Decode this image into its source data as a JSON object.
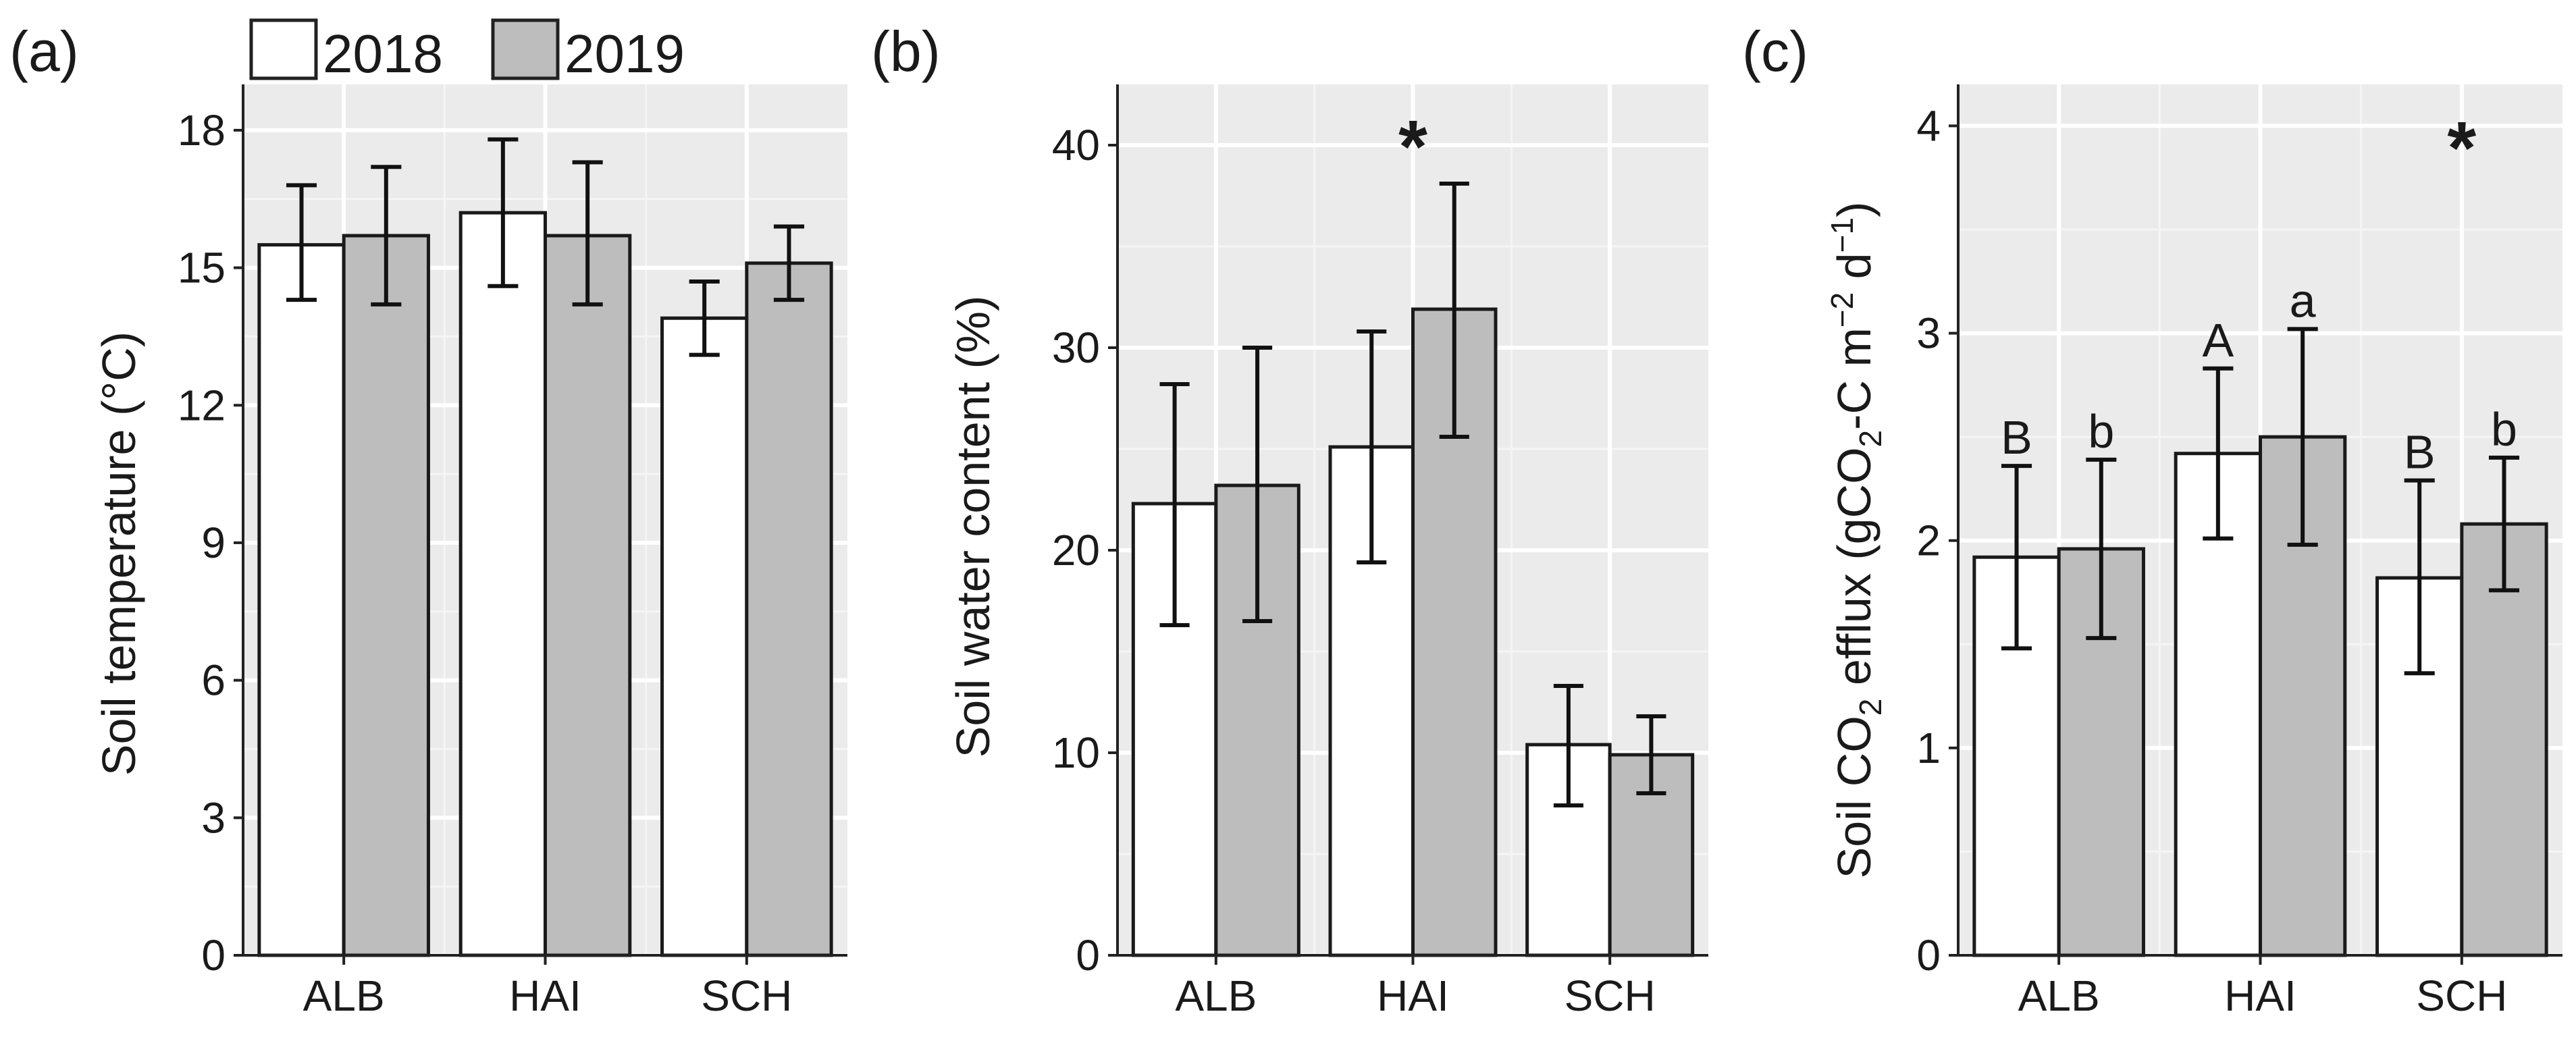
{
  "legend": {
    "entries": [
      {
        "label": "2018",
        "color": "#ffffff"
      },
      {
        "label": "2019",
        "color": "#bdbdbd"
      }
    ]
  },
  "chart_data": [
    {
      "type": "bar",
      "panel_label": "(a)",
      "ylabel": "Soil temperature (°C)",
      "categories": [
        "ALB",
        "HAI",
        "SCH"
      ],
      "ylim": [
        0,
        19
      ],
      "yticks": [
        0,
        3,
        6,
        9,
        12,
        15,
        18
      ],
      "ytick_labels": [
        "0",
        "3",
        "6",
        "9",
        "12",
        "15",
        "18"
      ],
      "series": [
        {
          "name": "2018",
          "color": "#ffffff",
          "values": [
            15.5,
            16.2,
            13.9
          ],
          "err_low": [
            14.3,
            14.6,
            13.1
          ],
          "err_high": [
            16.8,
            17.8,
            14.7
          ]
        },
        {
          "name": "2019",
          "color": "#bdbdbd",
          "values": [
            15.7,
            15.7,
            15.1
          ],
          "err_low": [
            14.2,
            14.2,
            14.3
          ],
          "err_high": [
            17.2,
            17.3,
            15.9
          ]
        }
      ],
      "stars": [],
      "letters": []
    },
    {
      "type": "bar",
      "panel_label": "(b)",
      "ylabel": "Soil water content (%)",
      "categories": [
        "ALB",
        "HAI",
        "SCH"
      ],
      "ylim": [
        0,
        43
      ],
      "yticks": [
        0,
        10,
        20,
        30,
        40
      ],
      "ytick_labels": [
        "0",
        "10",
        "20",
        "30",
        "40"
      ],
      "series": [
        {
          "name": "2018",
          "color": "#ffffff",
          "values": [
            22.3,
            25.1,
            10.4
          ],
          "err_low": [
            16.3,
            19.4,
            7.4
          ],
          "err_high": [
            28.2,
            30.8,
            13.3
          ]
        },
        {
          "name": "2019",
          "color": "#bdbdbd",
          "values": [
            23.2,
            31.9,
            9.9
          ],
          "err_low": [
            16.5,
            25.6,
            8.0
          ],
          "err_high": [
            30.0,
            38.1,
            11.8
          ]
        }
      ],
      "stars": [
        {
          "category": "HAI",
          "text": "*",
          "y": 40.5
        }
      ],
      "letters": []
    },
    {
      "type": "bar",
      "panel_label": "(c)",
      "ylabel_parts": {
        "pre": "Soil CO",
        "sub1": "2",
        "mid": " efflux (gCO",
        "sub2": "2",
        "mid2": "-C m",
        "sup1": "−2",
        "mid3": " d",
        "sup2": "−1",
        "post": ")"
      },
      "categories": [
        "ALB",
        "HAI",
        "SCH"
      ],
      "ylim": [
        0,
        4.2
      ],
      "yticks": [
        0,
        1,
        2,
        3,
        4
      ],
      "ytick_labels": [
        "0",
        "1",
        "2",
        "3",
        "4"
      ],
      "series": [
        {
          "name": "2018",
          "color": "#ffffff",
          "values": [
            1.92,
            2.42,
            1.82
          ],
          "err_low": [
            1.48,
            2.01,
            1.36
          ],
          "err_high": [
            2.36,
            2.83,
            2.29
          ]
        },
        {
          "name": "2019",
          "color": "#bdbdbd",
          "values": [
            1.96,
            2.5,
            2.08
          ],
          "err_low": [
            1.53,
            1.98,
            1.76
          ],
          "err_high": [
            2.39,
            3.02,
            2.4
          ]
        }
      ],
      "stars": [
        {
          "category": "SCH",
          "text": "*",
          "y": 3.95
        }
      ],
      "letters": [
        {
          "category": 0,
          "series": 0,
          "text": "B"
        },
        {
          "category": 0,
          "series": 1,
          "text": "b"
        },
        {
          "category": 1,
          "series": 0,
          "text": "A"
        },
        {
          "category": 1,
          "series": 1,
          "text": "a"
        },
        {
          "category": 2,
          "series": 0,
          "text": "B"
        },
        {
          "category": 2,
          "series": 1,
          "text": "b"
        }
      ]
    }
  ]
}
